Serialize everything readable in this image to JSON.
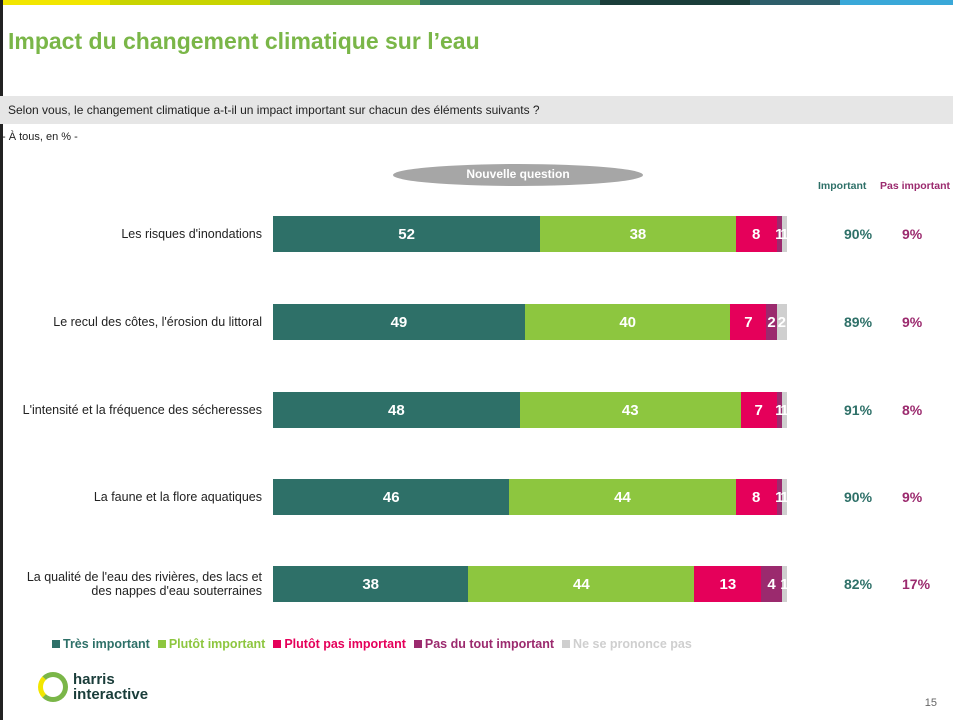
{
  "header": {
    "title": "Impact du changement climatique sur l’eau",
    "question": "Selon vous, le changement climatique a-t-il un impact important sur chacun des éléments suivants ?",
    "base": "- À tous, en % -",
    "badge": "Nouvelle question"
  },
  "chart_data": {
    "type": "bar",
    "orientation": "horizontal",
    "stacked": true,
    "categories": [
      "Les risques d'inondations",
      "Le recul des côtes, l'érosion du littoral",
      "L'intensité et la fréquence des sécheresses",
      "La faune et la flore aquatiques",
      "La qualité de l'eau des rivières, des lacs et des nappes d'eau souterraines"
    ],
    "series": [
      {
        "name": "Très important",
        "color": "#2e7068",
        "values": [
          52,
          49,
          48,
          46,
          38
        ]
      },
      {
        "name": "Plutôt important",
        "color": "#8dc63f",
        "values": [
          38,
          40,
          43,
          44,
          44
        ]
      },
      {
        "name": "Plutôt pas important",
        "color": "#e5005a",
        "values": [
          8,
          7,
          7,
          8,
          13
        ]
      },
      {
        "name": "Pas du tout important",
        "color": "#9b2a6e",
        "values": [
          1,
          2,
          1,
          1,
          4
        ]
      },
      {
        "name": "Ne se prononce pas",
        "color": "#cfcfcf",
        "values": [
          1,
          2,
          1,
          1,
          1
        ]
      }
    ],
    "xlim": [
      0,
      100
    ],
    "legend": "bottom",
    "totals": [
      {
        "name": "Important",
        "color": "#2e7068",
        "values": [
          90,
          89,
          91,
          90,
          82
        ],
        "value_labels": [
          "90%",
          "89%",
          "91%",
          "90%",
          "82%"
        ]
      },
      {
        "name": "Pas important",
        "color": "#9b2a6e",
        "values": [
          9,
          9,
          8,
          9,
          17
        ],
        "value_labels": [
          "9%",
          "9%",
          "8%",
          "9%",
          "17%"
        ]
      }
    ]
  },
  "footer": {
    "logo": [
      "harris",
      "interactive"
    ],
    "page": "15"
  }
}
